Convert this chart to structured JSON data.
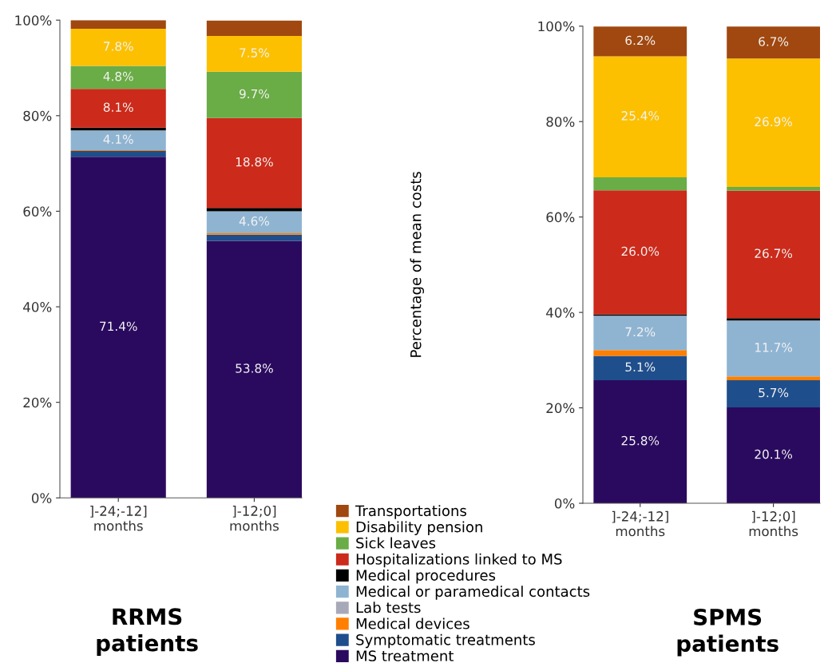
{
  "chart_data": [
    {
      "type": "bar",
      "stacked": true,
      "xlabel": "RRMS\npatients",
      "categories": [
        "]-24;-12]\nmonths",
        "]-12;0]\nmonths"
      ],
      "ylim": [
        0,
        100
      ],
      "yticks": [
        {
          "value": 0,
          "label": "0%"
        },
        {
          "value": 20,
          "label": "20%"
        },
        {
          "value": 40,
          "label": "40%"
        },
        {
          "value": 60,
          "label": "60%"
        },
        {
          "value": 80,
          "label": "80%"
        },
        {
          "value": 100,
          "label": "100%"
        }
      ],
      "grid": false,
      "legend": "right",
      "series": [
        {
          "name": "MS treatment",
          "color": "#2a0a5e",
          "values": [
            71.4,
            53.8
          ],
          "value_labels": [
            "71.4%",
            "53.8%"
          ]
        },
        {
          "name": "Symptomatic treatments",
          "color": "#1f4e8c",
          "values": [
            1.2,
            1.3
          ]
        },
        {
          "name": "Medical devices",
          "color": "#ff7f00",
          "values": [
            0.2,
            0.3
          ]
        },
        {
          "name": "Lab tests",
          "color": "#a8a9b8",
          "values": [
            null,
            null
          ]
        },
        {
          "name": "Medical or paramedical contacts",
          "color": "#8fb4d2",
          "values": [
            4.1,
            4.6
          ],
          "value_labels": [
            "4.1%",
            "4.6%"
          ]
        },
        {
          "name": "Medical procedures",
          "color": "#000000",
          "values": [
            0.6,
            0.7
          ]
        },
        {
          "name": "Hospitalizations linked to MS",
          "color": "#cc2a1a",
          "values": [
            8.1,
            18.8
          ],
          "value_labels": [
            "8.1%",
            "18.8%"
          ]
        },
        {
          "name": "Sick leaves",
          "color": "#6aac46",
          "values": [
            4.8,
            9.7
          ],
          "value_labels": [
            "4.8%",
            "9.7%"
          ]
        },
        {
          "name": "Disability pension",
          "color": "#fcc000",
          "values": [
            7.8,
            7.5
          ],
          "value_labels": [
            "7.8%",
            "7.5%"
          ]
        },
        {
          "name": "Transportations",
          "color": "#a0480f",
          "values": [
            1.8,
            3.2
          ]
        }
      ]
    },
    {
      "type": "bar",
      "stacked": true,
      "xlabel": "SPMS\npatients",
      "ylabel": "Percentage of mean costs",
      "categories": [
        "]-24;-12]\nmonths",
        "]-12;0]\nmonths"
      ],
      "ylim": [
        0,
        100
      ],
      "yticks": [
        {
          "value": 0,
          "label": "0%"
        },
        {
          "value": 20,
          "label": "20%"
        },
        {
          "value": 40,
          "label": "40%"
        },
        {
          "value": 60,
          "label": "60%"
        },
        {
          "value": 80,
          "label": "80%"
        },
        {
          "value": 100,
          "label": "100%"
        }
      ],
      "grid": false,
      "series": [
        {
          "color": "#2a0a5e",
          "values": [
            25.8,
            20.1
          ],
          "value_labels": [
            "25.8%",
            "20.1%"
          ]
        },
        {
          "color": "#1f4e8c",
          "values": [
            5.1,
            5.7
          ],
          "value_labels": [
            "5.1%",
            "5.7%"
          ]
        },
        {
          "color": "#ff7f00",
          "values": [
            1.2,
            0.8
          ]
        },
        {
          "color": "#a8a9b8",
          "values": [
            null,
            null
          ]
        },
        {
          "color": "#8fb4d2",
          "values": [
            7.2,
            11.7
          ],
          "value_labels": [
            "7.2%",
            "11.7%"
          ]
        },
        {
          "color": "#000000",
          "values": [
            0.3,
            0.5
          ]
        },
        {
          "color": "#cc2a1a",
          "values": [
            26.0,
            26.7
          ],
          "value_labels": [
            "26.0%",
            "26.7%"
          ]
        },
        {
          "color": "#6aac46",
          "values": [
            2.7,
            0.8
          ]
        },
        {
          "color": "#fcc000",
          "values": [
            25.4,
            26.9
          ],
          "value_labels": [
            "25.4%",
            "26.9%"
          ]
        },
        {
          "color": "#a0480f",
          "values": [
            6.2,
            6.7
          ],
          "value_labels": [
            "6.2%",
            "6.7%"
          ]
        }
      ]
    }
  ]
}
